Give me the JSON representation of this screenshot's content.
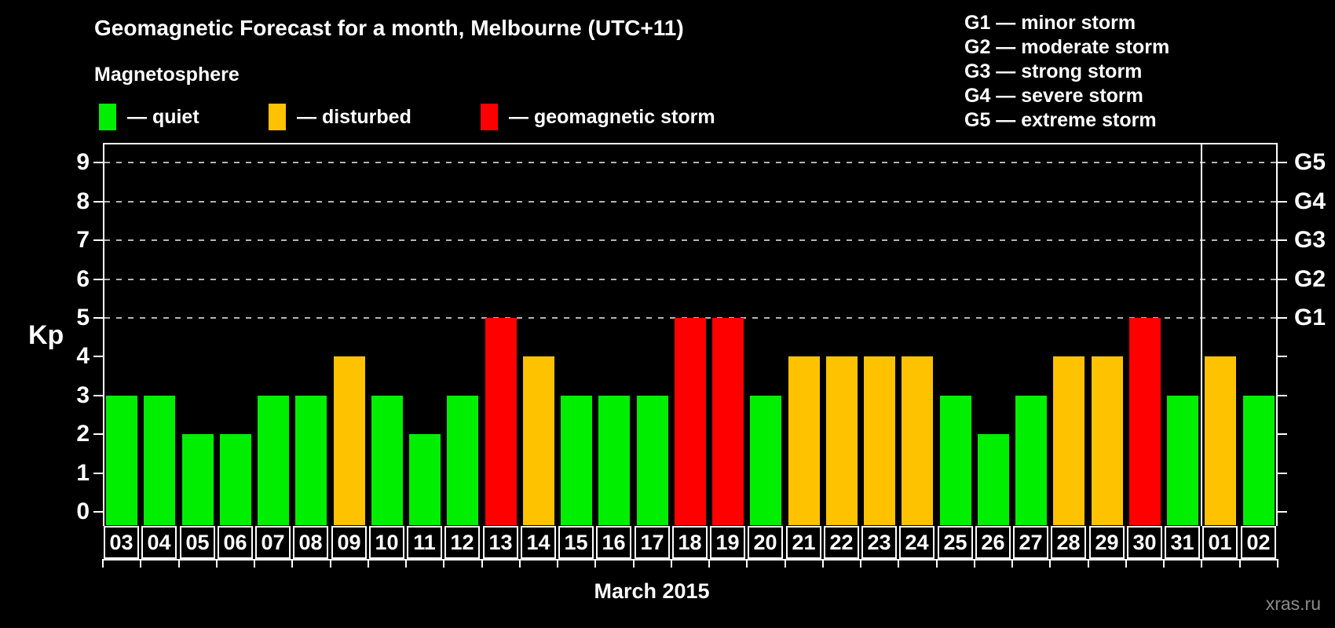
{
  "header": {
    "title": "Geomagnetic Forecast for a month, Melbourne (UTC+11)"
  },
  "legend": {
    "title": "Magnetosphere",
    "items": [
      {
        "label": "— quiet",
        "status": "quiet",
        "color": "#00ee00"
      },
      {
        "label": "— disturbed",
        "status": "disturbed",
        "color": "#ffc200"
      },
      {
        "label": "— geomagnetic storm",
        "status": "storm",
        "color": "#ff0000"
      }
    ]
  },
  "g_legend": {
    "items": [
      "G1 — minor storm",
      "G2 — moderate storm",
      "G3 — strong storm",
      "G4 — severe storm",
      "G5 — extreme storm"
    ]
  },
  "watermark": "xras.ru",
  "chart_data": {
    "type": "bar",
    "title": "Geomagnetic Forecast for a month, Melbourne (UTC+11)",
    "xlabel": "March 2015",
    "ylabel": "Kp",
    "ylim": [
      -0.35,
      9.5
    ],
    "yticks": [
      0,
      1,
      2,
      3,
      4,
      5,
      6,
      7,
      8,
      9
    ],
    "gridlines_at_kp": [
      5,
      6,
      7,
      8,
      9
    ],
    "grid": "dashed horizontal lines at storm levels only",
    "legend_position": "top",
    "right_axis": [
      {
        "kp": 5,
        "label": "G1"
      },
      {
        "kp": 6,
        "label": "G2"
      },
      {
        "kp": 7,
        "label": "G3"
      },
      {
        "kp": 8,
        "label": "G4"
      },
      {
        "kp": 9,
        "label": "G5"
      }
    ],
    "categories": [
      "03",
      "04",
      "05",
      "06",
      "07",
      "08",
      "09",
      "10",
      "11",
      "12",
      "13",
      "14",
      "15",
      "16",
      "17",
      "18",
      "19",
      "20",
      "21",
      "22",
      "23",
      "24",
      "25",
      "26",
      "27",
      "28",
      "29",
      "30",
      "31",
      "01",
      "02"
    ],
    "values": [
      3,
      3,
      2,
      2,
      3,
      3,
      4,
      3,
      2,
      3,
      5,
      4,
      3,
      3,
      3,
      5,
      5,
      3,
      4,
      4,
      4,
      4,
      3,
      2,
      3,
      4,
      4,
      5,
      3,
      4,
      3
    ],
    "statuses": [
      "quiet",
      "quiet",
      "quiet",
      "quiet",
      "quiet",
      "quiet",
      "disturbed",
      "quiet",
      "quiet",
      "quiet",
      "storm",
      "disturbed",
      "quiet",
      "quiet",
      "quiet",
      "storm",
      "storm",
      "quiet",
      "disturbed",
      "disturbed",
      "disturbed",
      "disturbed",
      "quiet",
      "quiet",
      "quiet",
      "disturbed",
      "disturbed",
      "storm",
      "quiet",
      "disturbed",
      "quiet"
    ],
    "status_colors": {
      "quiet": "#00ee00",
      "disturbed": "#ffc200",
      "storm": "#ff0000"
    },
    "month_separator_after_index": 28
  }
}
